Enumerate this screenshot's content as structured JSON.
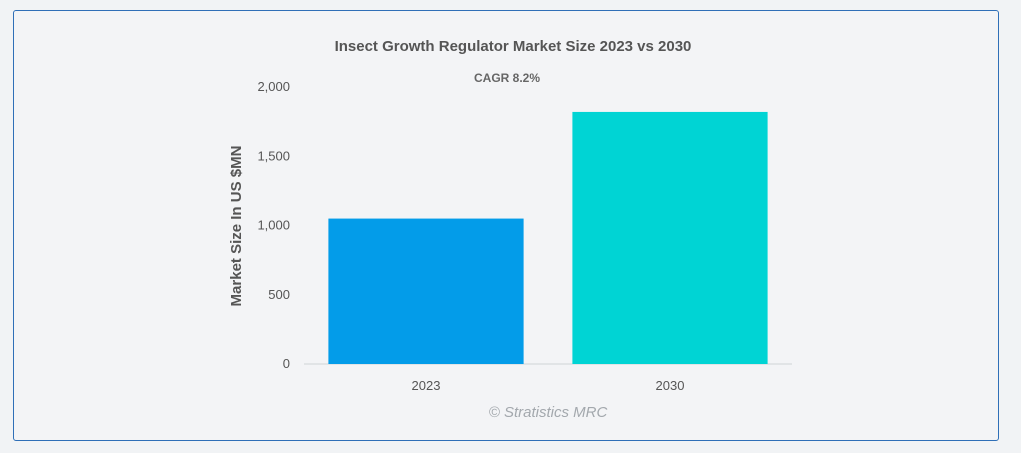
{
  "chart_data": {
    "type": "bar",
    "title": "Insect Growth Regulator Market Size 2023 vs 2030",
    "subtitle": "CAGR 8.2%",
    "categories": [
      "2023",
      "2030"
    ],
    "values": [
      1050,
      1820
    ],
    "ylabel": "Market Size In US $MN",
    "xlabel": "",
    "ylim": [
      0,
      2000
    ],
    "yticks": [
      0,
      500,
      1000,
      1500,
      2000
    ],
    "ytick_labels": [
      "0",
      "500",
      "1,000",
      "1,500",
      "2,000"
    ],
    "grid": false,
    "colors": [
      "#039ce9",
      "#00d4d4"
    ],
    "credit": "© Stratistics MRC"
  }
}
